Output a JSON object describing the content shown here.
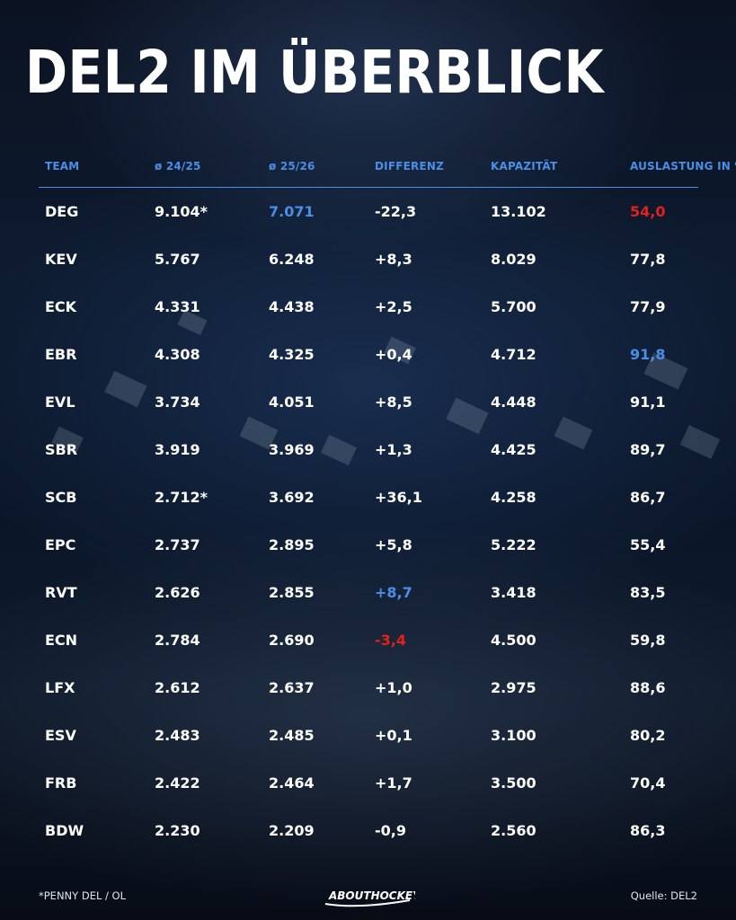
{
  "title": "DEL2 IM ÜBERBLICK",
  "table": {
    "headers": [
      "TEAM",
      "ø 24/25",
      "ø 25/26",
      "DIFFERENZ",
      "KAPAZITÄT",
      "AUSLASTUNG IN %"
    ],
    "rows": [
      [
        "DEG",
        "9.104*",
        "7.071",
        "-22,3",
        "13.102",
        "54,0"
      ],
      [
        "KEV",
        "5.767",
        "6.248",
        "+8,3",
        "8.029",
        "77,8"
      ],
      [
        "ECK",
        "4.331",
        "4.438",
        "+2,5",
        "5.700",
        "77,9"
      ],
      [
        "EBR",
        "4.308",
        "4.325",
        "+0,4",
        "4.712",
        "91,8"
      ],
      [
        "EVL",
        "3.734",
        "4.051",
        "+8,5",
        "4.448",
        "91,1"
      ],
      [
        "SBR",
        "3.919",
        "3.969",
        "+1,3",
        "4.425",
        "89,7"
      ],
      [
        "SCB",
        "2.712*",
        "3.692",
        "+36,1",
        "4.258",
        "86,7"
      ],
      [
        "EPC",
        "2.737",
        "2.895",
        "+5,8",
        "5.222",
        "55,4"
      ],
      [
        "RVT",
        "2.626",
        "2.855",
        "+8,7",
        "3.418",
        "83,5"
      ],
      [
        "ECN",
        "2.784",
        "2.690",
        "-3,4",
        "4.500",
        "59,8"
      ],
      [
        "LFX",
        "2.612",
        "2.637",
        "+1,0",
        "2.975",
        "88,6"
      ],
      [
        "ESV",
        "2.483",
        "2.485",
        "+0,1",
        "3.100",
        "80,2"
      ],
      [
        "FRB",
        "2.422",
        "2.464",
        "+1,7",
        "3.500",
        "70,4"
      ],
      [
        "BDW",
        "2.230",
        "2.209",
        "-0,9",
        "2.560",
        "86,3"
      ]
    ],
    "highlights": {
      "blue": [
        "0-2",
        "3-5",
        "8-3"
      ],
      "red": [
        "0-5",
        "9-3"
      ]
    }
  },
  "footer": {
    "note": "*PENNY DEL / OL",
    "logo": "ABOUTHOCKEY",
    "source": "Quelle: DEL2"
  },
  "colors": {
    "accent": "#4b8ee6",
    "negative": "#e3201b",
    "text": "#ffffff"
  }
}
